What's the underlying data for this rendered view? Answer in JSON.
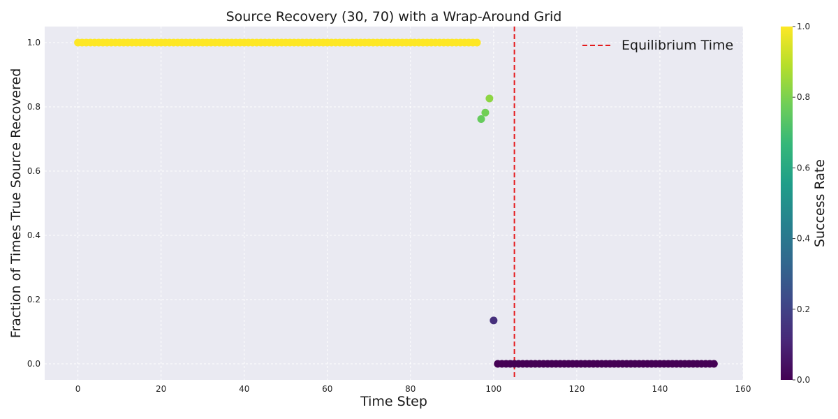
{
  "chart_data": {
    "type": "scatter",
    "title": "Source Recovery (30, 70) with a Wrap-Around Grid",
    "xlabel": "Time Step",
    "ylabel": "Fraction of Times True Source Recovered",
    "xlim": [
      -8,
      160
    ],
    "ylim": [
      -0.05,
      1.05
    ],
    "xticks": [
      0,
      20,
      40,
      60,
      80,
      100,
      120,
      140,
      160
    ],
    "yticks": [
      0.0,
      0.2,
      0.4,
      0.6,
      0.8,
      1.0
    ],
    "grid": true,
    "background_color": "#eaeaf2",
    "colormap": "viridis",
    "colorbar": {
      "label": "Success Rate",
      "range": [
        0.0,
        1.0
      ],
      "ticks": [
        0.0,
        0.2,
        0.4,
        0.6,
        0.8,
        1.0
      ]
    },
    "marker_size": 7,
    "points": {
      "constant_high": {
        "x_start": 0,
        "x_end": 96,
        "y": 1.0
      },
      "transition": [
        {
          "x": 97,
          "y": 0.762
        },
        {
          "x": 98,
          "y": 0.782
        },
        {
          "x": 99,
          "y": 0.826
        },
        {
          "x": 100,
          "y": 0.135
        }
      ],
      "constant_low": {
        "x_start": 101,
        "x_end": 153,
        "y": 0.0
      }
    },
    "reference_line": {
      "orientation": "vertical",
      "x": 105,
      "label": "Equilibrium Time",
      "color": "#e41a1c",
      "style": "dashed"
    },
    "legend": {
      "placement": "top-right",
      "entries": [
        "Equilibrium Time"
      ]
    }
  }
}
